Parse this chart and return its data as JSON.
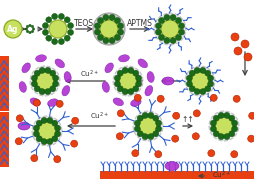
{
  "bg_color": "#ffffff",
  "ag_color": "#c8e060",
  "ag_edge": "#88aa20",
  "ag_label_color": "#ffffff",
  "sio2_fill": "#d8d8d8",
  "sio2_fill2": "#e0e0e0",
  "raman_dot_color": "#1a6a1a",
  "raman_dot_edge": "#0a4a0a",
  "purple_color": "#b030d0",
  "purple_edge": "#7010a0",
  "orange_color": "#e84010",
  "orange_edge": "#b02000",
  "blue_color": "#3060d0",
  "arrow_color": "#404040",
  "surface_orange": "#e84010",
  "surface_blue": "#3060d0",
  "text_color": "#333333",
  "TEOS": "TEOS",
  "APTMS": "APTMS",
  "Cu2": "Cu$^{2+}$",
  "tt": "↑↑"
}
